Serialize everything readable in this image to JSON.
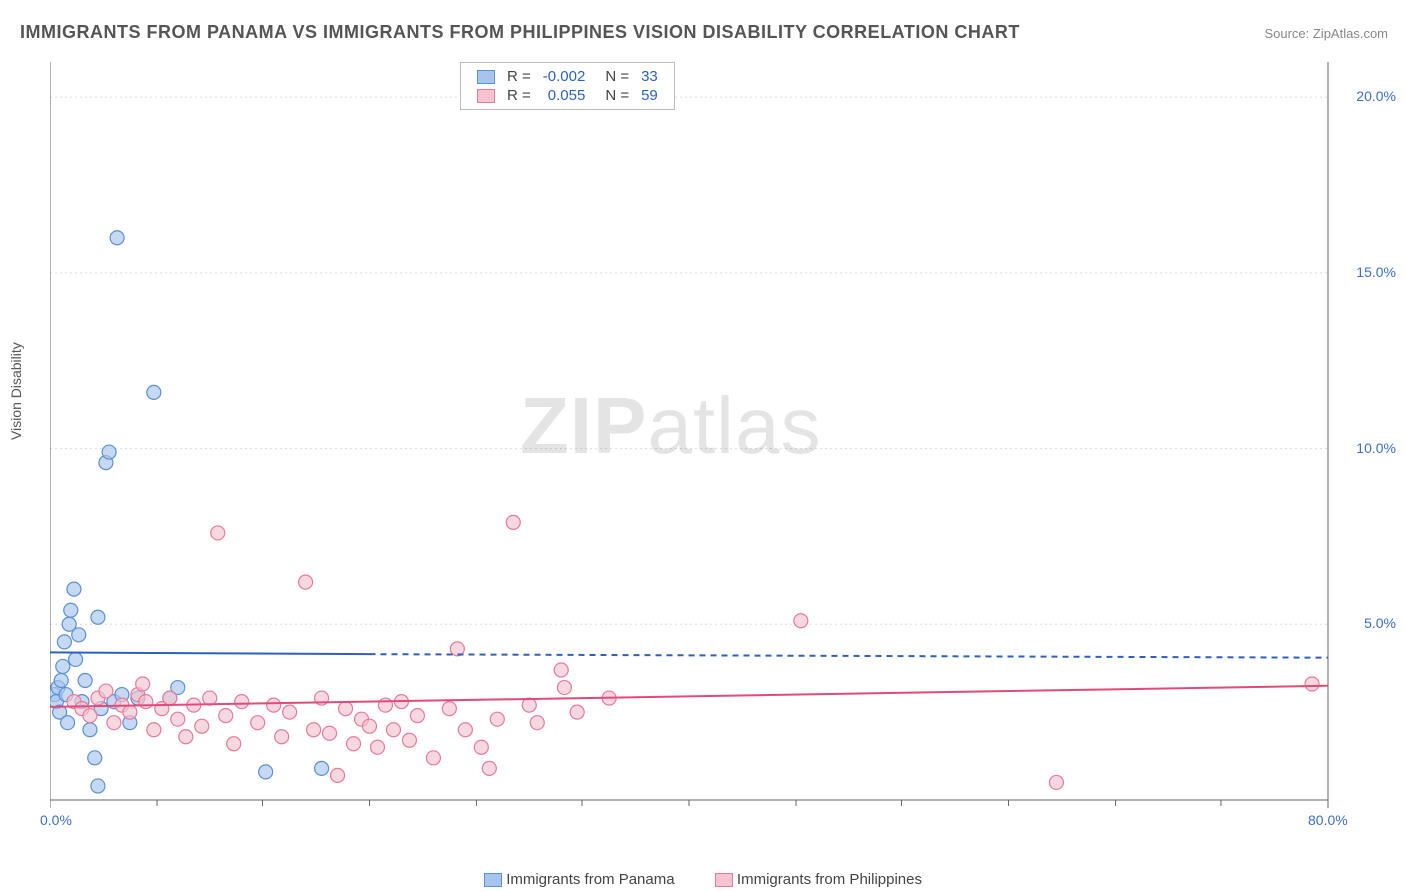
{
  "title": "IMMIGRANTS FROM PANAMA VS IMMIGRANTS FROM PHILIPPINES VISION DISABILITY CORRELATION CHART",
  "source": "Source: ZipAtlas.com",
  "y_axis_label": "Vision Disability",
  "watermark_bold": "ZIP",
  "watermark_rest": "atlas",
  "chart": {
    "type": "scatter",
    "background_color": "#ffffff",
    "grid_color": "#dcdcdc",
    "grid_dash": "2,3",
    "axis_color": "#666666",
    "xlim": [
      0,
      80
    ],
    "ylim": [
      0,
      21
    ],
    "x_ticks": [
      0,
      80
    ],
    "x_tick_labels": [
      "0.0%",
      "80.0%"
    ],
    "x_minor_ticks": [
      6.7,
      13.3,
      20,
      26.7,
      33.3,
      40,
      46.7,
      53.3,
      60,
      66.7,
      73.3
    ],
    "y_ticks": [
      5,
      10,
      15,
      20
    ],
    "y_tick_labels": [
      "5.0%",
      "10.0%",
      "15.0%",
      "20.0%"
    ],
    "marker_radius": 7,
    "marker_stroke_width": 1.2,
    "series": [
      {
        "name": "Immigrants from Panama",
        "label": "Immigrants from Panama",
        "fill_color": "#a7c4ec",
        "stroke_color": "#5b8fd6",
        "swatch_fill": "#a7c4ec",
        "swatch_stroke": "#5b8fd6",
        "R_label": "R =",
        "R_value": "-0.002",
        "N_label": "N =",
        "N_value": "33",
        "trend": {
          "x1": 0,
          "y1": 4.2,
          "x2": 20,
          "y2": 4.15,
          "dash_x1": 20,
          "dash_y1": 4.15,
          "dash_x2": 80,
          "dash_y2": 4.05,
          "color": "#2f5fc0",
          "width": 2
        },
        "points": [
          [
            0.3,
            3.0
          ],
          [
            0.4,
            2.8
          ],
          [
            0.5,
            3.2
          ],
          [
            0.6,
            2.5
          ],
          [
            0.7,
            3.4
          ],
          [
            0.8,
            3.8
          ],
          [
            0.9,
            4.5
          ],
          [
            1.0,
            3.0
          ],
          [
            1.1,
            2.2
          ],
          [
            1.2,
            5.0
          ],
          [
            1.3,
            5.4
          ],
          [
            1.5,
            6.0
          ],
          [
            1.6,
            4.0
          ],
          [
            1.8,
            4.7
          ],
          [
            2.0,
            2.8
          ],
          [
            2.2,
            3.4
          ],
          [
            2.5,
            2.0
          ],
          [
            2.8,
            1.2
          ],
          [
            3.0,
            5.2
          ],
          [
            3.2,
            2.6
          ],
          [
            3.5,
            9.6
          ],
          [
            3.7,
            9.9
          ],
          [
            4.0,
            2.8
          ],
          [
            4.2,
            16.0
          ],
          [
            4.5,
            3.0
          ],
          [
            5.0,
            2.2
          ],
          [
            5.5,
            2.9
          ],
          [
            6.5,
            11.6
          ],
          [
            7.5,
            2.9
          ],
          [
            8.0,
            3.2
          ],
          [
            13.5,
            0.8
          ],
          [
            17.0,
            0.9
          ],
          [
            3.0,
            0.4
          ]
        ]
      },
      {
        "name": "Immigrants from Philippines",
        "label": "Immigrants from Philippines",
        "fill_color": "#f5c3cf",
        "stroke_color": "#e77a99",
        "swatch_fill": "#f5c3cf",
        "swatch_stroke": "#e77a99",
        "R_label": "R =",
        "R_value": "0.055",
        "N_label": "N =",
        "N_value": "59",
        "trend": {
          "x1": 0,
          "y1": 2.65,
          "x2": 80,
          "y2": 3.25,
          "color": "#e24a78",
          "width": 2
        },
        "points": [
          [
            1.5,
            2.8
          ],
          [
            2.0,
            2.6
          ],
          [
            2.5,
            2.4
          ],
          [
            3.0,
            2.9
          ],
          [
            3.5,
            3.1
          ],
          [
            4.0,
            2.2
          ],
          [
            4.5,
            2.7
          ],
          [
            5.0,
            2.5
          ],
          [
            5.5,
            3.0
          ],
          [
            6.0,
            2.8
          ],
          [
            6.5,
            2.0
          ],
          [
            7.0,
            2.6
          ],
          [
            7.5,
            2.9
          ],
          [
            8.0,
            2.3
          ],
          [
            8.5,
            1.8
          ],
          [
            9.0,
            2.7
          ],
          [
            9.5,
            2.1
          ],
          [
            10.0,
            2.9
          ],
          [
            10.5,
            7.6
          ],
          [
            11.0,
            2.4
          ],
          [
            11.5,
            1.6
          ],
          [
            12.0,
            2.8
          ],
          [
            13.0,
            2.2
          ],
          [
            14.0,
            2.7
          ],
          [
            14.5,
            1.8
          ],
          [
            15.0,
            2.5
          ],
          [
            16.0,
            6.2
          ],
          [
            16.5,
            2.0
          ],
          [
            17.0,
            2.9
          ],
          [
            17.5,
            1.9
          ],
          [
            18.0,
            0.7
          ],
          [
            18.5,
            2.6
          ],
          [
            19.0,
            1.6
          ],
          [
            19.5,
            2.3
          ],
          [
            20.0,
            2.1
          ],
          [
            20.5,
            1.5
          ],
          [
            21.0,
            2.7
          ],
          [
            21.5,
            2.0
          ],
          [
            22.0,
            2.8
          ],
          [
            22.5,
            1.7
          ],
          [
            23.0,
            2.4
          ],
          [
            24.0,
            1.2
          ],
          [
            25.0,
            2.6
          ],
          [
            25.5,
            4.3
          ],
          [
            26.0,
            2.0
          ],
          [
            27.0,
            1.5
          ],
          [
            27.5,
            0.9
          ],
          [
            28.0,
            2.3
          ],
          [
            29.0,
            7.9
          ],
          [
            30.0,
            2.7
          ],
          [
            30.5,
            2.2
          ],
          [
            32.0,
            3.7
          ],
          [
            32.2,
            3.2
          ],
          [
            33.0,
            2.5
          ],
          [
            35.0,
            2.9
          ],
          [
            47.0,
            5.1
          ],
          [
            63.0,
            0.5
          ],
          [
            79.0,
            3.3
          ],
          [
            5.8,
            3.3
          ]
        ]
      }
    ]
  },
  "text_color_label": "#444444",
  "text_color_value": "#2f5fc0"
}
